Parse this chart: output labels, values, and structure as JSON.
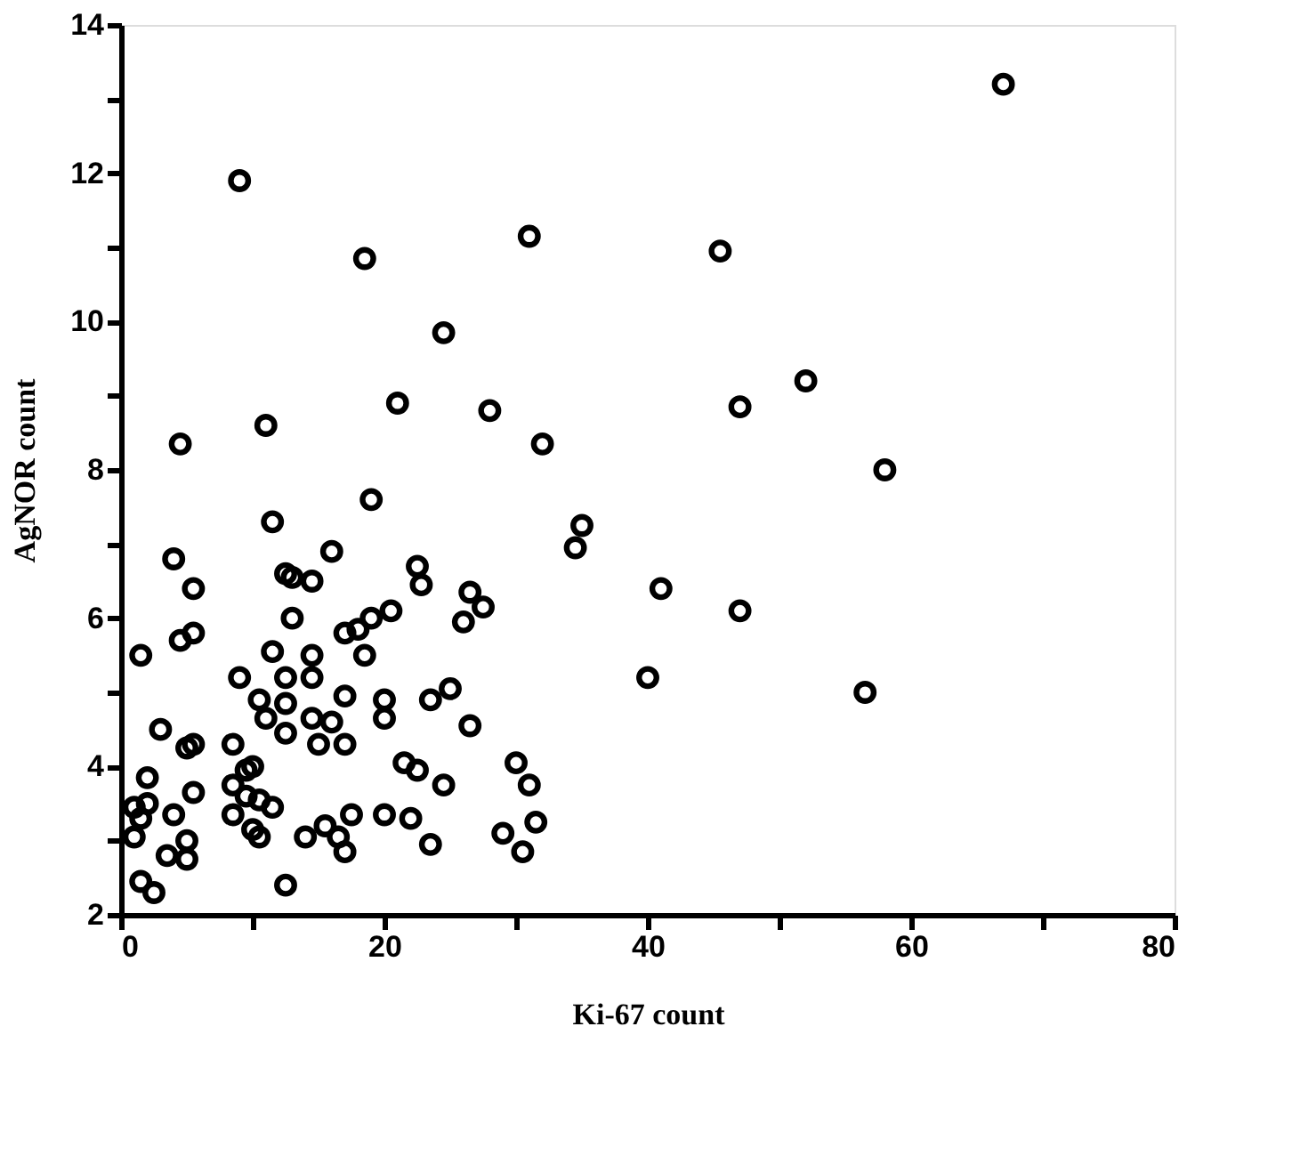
{
  "chart_data": {
    "type": "scatter",
    "xlabel": "Ki-67   count",
    "ylabel": "AgNOR   count",
    "marker": "circle",
    "grid": false,
    "xlim": [
      0,
      80
    ],
    "ylim": [
      2,
      14
    ],
    "xticks": [
      0,
      {
        "value": 10,
        "label": null
      },
      20,
      {
        "value": 30,
        "label": null
      },
      40,
      {
        "value": 50,
        "label": null
      },
      60,
      {
        "value": 70,
        "label": null
      },
      80
    ],
    "yticks": [
      2,
      {
        "value": 3,
        "label": null
      },
      4,
      {
        "value": 5,
        "label": null
      },
      6,
      {
        "value": 7,
        "label": null
      },
      8,
      {
        "value": 9,
        "label": null
      },
      10,
      {
        "value": 11,
        "label": null
      },
      12,
      {
        "value": 13,
        "label": null
      },
      14
    ],
    "series": [
      {
        "color": "#000000",
        "x": [
          67,
          9,
          18.5,
          31,
          45.5,
          24.5,
          21,
          11,
          28,
          32,
          47,
          52,
          4.5,
          58,
          19,
          11.5,
          35,
          34.5,
          41,
          47,
          40,
          56.5,
          4,
          5.5,
          16,
          12.5,
          13,
          14.5,
          22.5,
          22.8,
          26.5,
          27.5,
          26,
          20.5,
          19,
          18,
          17,
          18.5,
          13,
          11.5,
          14.5,
          1.5,
          4.5,
          5.5,
          9,
          12.5,
          14.5,
          10.5,
          12.5,
          11,
          17,
          20,
          20,
          25,
          23.5,
          26.5,
          12.5,
          14.5,
          16,
          15,
          17,
          5,
          5.5,
          3,
          8.5,
          9.5,
          10,
          2,
          8.5,
          9.5,
          10.5,
          5.5,
          11.5,
          1,
          1.5,
          2,
          4,
          1,
          5,
          3.5,
          5,
          10,
          10.5,
          14,
          15.5,
          16.5,
          17,
          17.5,
          20,
          21.5,
          22.5,
          24.5,
          22,
          23.5,
          29,
          30,
          31,
          31.5,
          30.5,
          1.5,
          2.5,
          12.5,
          8.5
        ],
        "values": [
          13.2,
          11.9,
          10.85,
          11.15,
          10.95,
          9.85,
          8.9,
          8.6,
          8.8,
          8.35,
          8.85,
          9.2,
          8.35,
          8.0,
          7.6,
          7.3,
          7.25,
          6.95,
          6.4,
          6.1,
          5.2,
          5.0,
          6.8,
          6.4,
          6.9,
          6.6,
          6.55,
          6.5,
          6.7,
          6.45,
          6.35,
          6.15,
          5.95,
          6.1,
          6.0,
          5.85,
          5.8,
          5.5,
          6.0,
          5.55,
          5.5,
          5.5,
          5.7,
          5.8,
          5.2,
          5.2,
          5.2,
          4.9,
          4.85,
          4.65,
          4.95,
          4.9,
          4.65,
          5.05,
          4.9,
          4.55,
          4.45,
          4.65,
          4.6,
          4.3,
          4.3,
          4.25,
          4.3,
          4.5,
          4.3,
          3.95,
          4.0,
          3.85,
          3.75,
          3.6,
          3.55,
          3.65,
          3.45,
          3.45,
          3.3,
          3.5,
          3.35,
          3.05,
          3.0,
          2.8,
          2.75,
          3.15,
          3.05,
          3.05,
          3.2,
          3.05,
          2.85,
          3.35,
          3.35,
          4.05,
          3.95,
          3.75,
          3.3,
          2.95,
          3.1,
          4.05,
          3.75,
          3.25,
          2.85,
          2.45,
          2.3,
          2.4,
          3.35
        ]
      }
    ]
  }
}
